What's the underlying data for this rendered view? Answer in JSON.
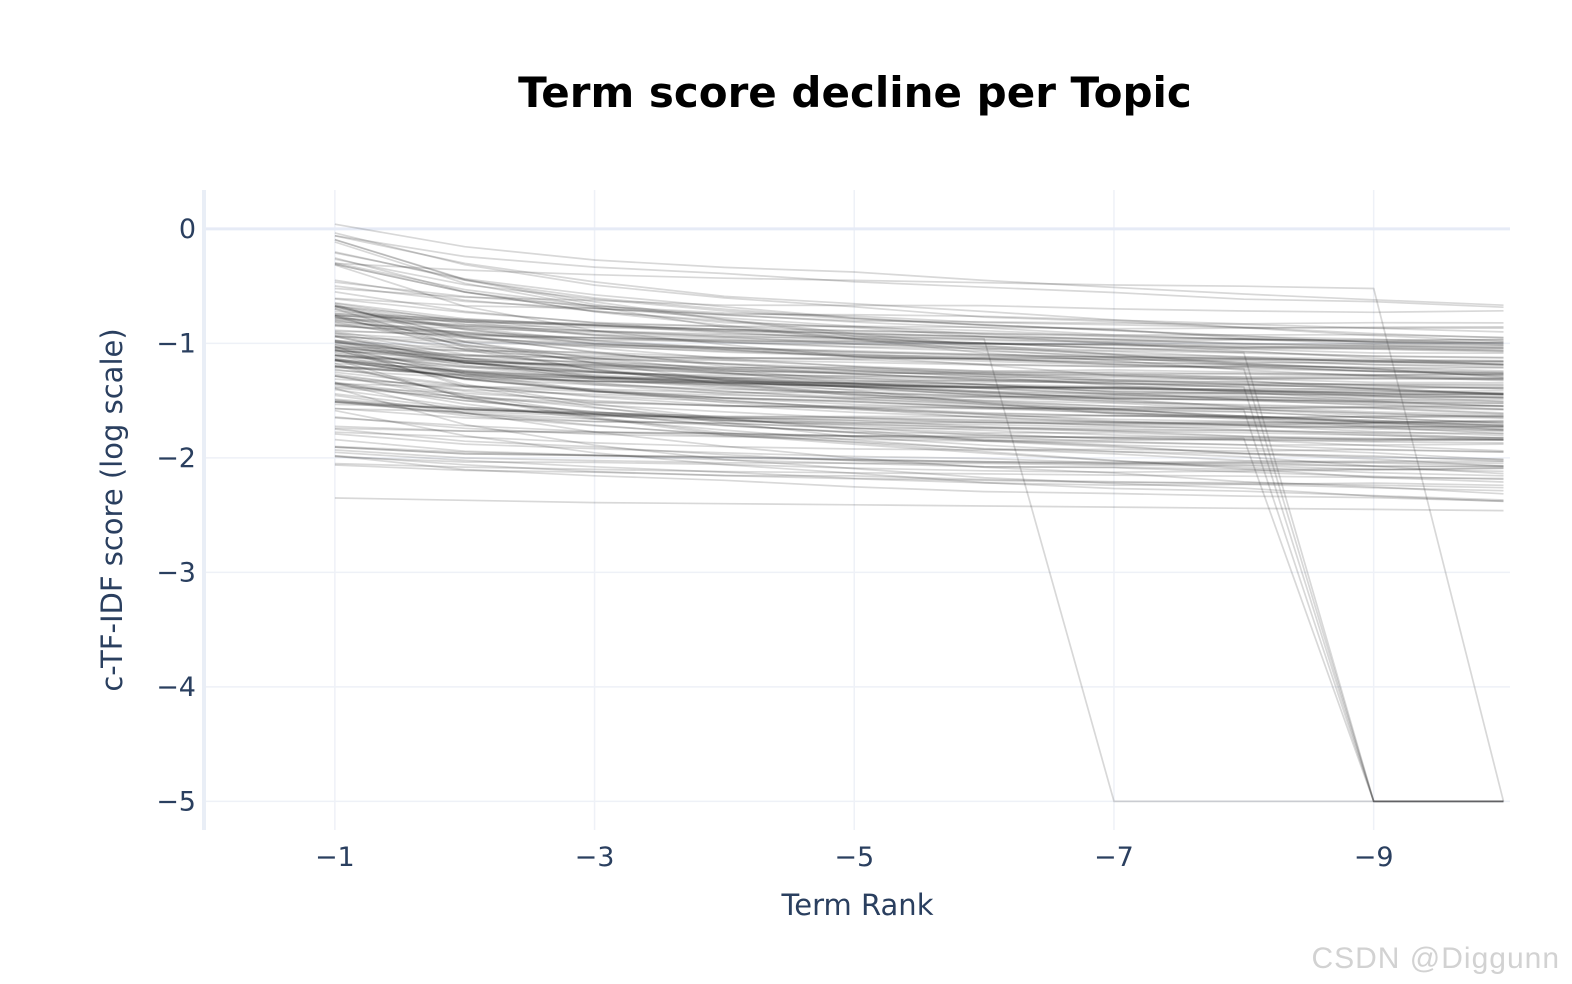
{
  "page": {
    "background": "#ffffff"
  },
  "watermark": {
    "text": "CSDN @Diggunn",
    "color": "#d2d2d2"
  },
  "chart_data": {
    "type": "line",
    "title": "Term score decline per Topic",
    "xlabel": "Term Rank",
    "ylabel": "c-TF-IDF score (log scale)",
    "x": [
      1,
      2,
      3,
      4,
      5,
      6,
      7,
      8,
      9,
      10
    ],
    "x_ticks": [
      1,
      3,
      5,
      7,
      9
    ],
    "y_ticks": [
      0,
      -1,
      -2,
      -3,
      -4,
      -5
    ],
    "xlim": [
      0,
      10.05
    ],
    "ylim": [
      -5.25,
      0.34
    ],
    "grid": true,
    "legend": false,
    "plot_bgcolor": "#ffffff",
    "gridcolor": "#eef1f7",
    "zeroline_color": "#e6ebf6",
    "axisline_color": "#e9eef6",
    "line_style": {
      "color": "#282828",
      "opacity": 0.18,
      "width": 1.7
    },
    "description": "Spaghetti plot: one grey semi-transparent line per topic showing c-TF-IDF score decline over term ranks 1-10. Dense band between 0 and -2; a few topics plunge to -5.",
    "n_series_estimate": 165,
    "band": {
      "start_range_at_rank1": [
        -2.35,
        0.1
      ],
      "dense_range_at_rank1": [
        -0.35,
        -1.7
      ],
      "end_range_at_rank10": [
        -0.45,
        -2.2
      ],
      "dense_range_at_rank10": [
        -0.8,
        -1.9
      ]
    },
    "bulk_series_model": {
      "seed": 11,
      "count": 152,
      "start_top_share": 0.1,
      "start_top_range": [
        -0.32,
        0.08
      ],
      "start_mid_range": [
        -1.72,
        -0.35
      ],
      "start_low_range": [
        -2.12,
        -1.72
      ],
      "decay_range": [
        0.15,
        1.25
      ],
      "floor": -2.46,
      "model": "v(r) = start - decay*log10(r) + smooth_noise"
    },
    "outlier_series": [
      {
        "name": "drop-to--5-at-rank-7",
        "values": [
          -0.78,
          -0.85,
          -0.89,
          -0.92,
          -0.94,
          -0.96,
          -5,
          -5,
          -5,
          -5
        ]
      },
      {
        "name": "drop-to--5-at-rank-9-a",
        "values": [
          -0.55,
          -0.72,
          -0.82,
          -0.9,
          -0.96,
          -1.0,
          -1.04,
          -1.08,
          -5,
          -5
        ]
      },
      {
        "name": "drop-to--5-at-rank-9-b",
        "values": [
          -0.7,
          -0.88,
          -0.98,
          -1.05,
          -1.1,
          -1.14,
          -1.18,
          -1.22,
          -5,
          -5
        ]
      },
      {
        "name": "drop-to--5-at-rank-9-c",
        "values": [
          -0.9,
          -1.05,
          -1.15,
          -1.22,
          -1.27,
          -1.31,
          -1.35,
          -1.38,
          -5,
          -5
        ]
      },
      {
        "name": "drop-to--5-at-rank-9-d",
        "values": [
          -1.1,
          -1.25,
          -1.35,
          -1.42,
          -1.47,
          -1.51,
          -1.55,
          -1.58,
          -5,
          -5
        ]
      },
      {
        "name": "drop-to--5-at-rank-9-e",
        "values": [
          -1.35,
          -1.5,
          -1.6,
          -1.67,
          -1.72,
          -1.76,
          -1.8,
          -1.83,
          -5,
          -5
        ]
      },
      {
        "name": "drop-to--5-at-rank-10",
        "values": [
          -0.3,
          -0.36,
          -0.4,
          -0.43,
          -0.45,
          -0.47,
          -0.49,
          -0.5,
          -0.52,
          -5
        ]
      },
      {
        "name": "flat-low-a",
        "values": [
          -2.35,
          -2.37,
          -2.39,
          -2.4,
          -2.41,
          -2.42,
          -2.43,
          -2.44,
          -2.45,
          -2.46
        ]
      },
      {
        "name": "flat-low-b",
        "values": [
          -1.9,
          -1.95,
          -1.98,
          -2.0,
          -2.02,
          -2.04,
          -2.05,
          -2.06,
          -2.07,
          -2.08
        ]
      },
      {
        "name": "flat-low-c",
        "values": [
          -2.05,
          -2.08,
          -2.1,
          -2.12,
          -2.13,
          -2.14,
          -2.15,
          -2.16,
          -2.17,
          -2.18
        ]
      }
    ]
  }
}
